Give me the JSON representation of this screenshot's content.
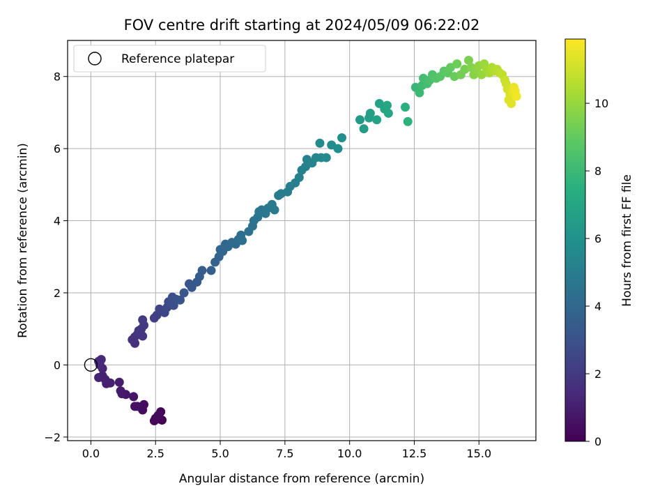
{
  "chart_data": {
    "type": "scatter",
    "title": "FOV centre drift starting at 2024/05/09 06:22:02",
    "xlabel": "Angular distance from reference (arcmin)",
    "ylabel": "Rotation from reference (arcmin)",
    "xlim": [
      -0.9,
      17.2
    ],
    "ylim": [
      -2.1,
      9.0
    ],
    "xticks": [
      0.0,
      2.5,
      5.0,
      7.5,
      10.0,
      12.5,
      15.0
    ],
    "xtick_labels": [
      "0.0",
      "2.5",
      "5.0",
      "7.5",
      "10.0",
      "12.5",
      "15.0"
    ],
    "yticks": [
      -2,
      0,
      2,
      4,
      6,
      8
    ],
    "ytick_labels": [
      "−2",
      "0",
      "2",
      "4",
      "6",
      "8"
    ],
    "grid": true,
    "colormap": "viridis",
    "colorbar": {
      "label": "Hours from first FF file",
      "range": [
        0,
        11.9
      ],
      "ticks": [
        0,
        2,
        4,
        6,
        8,
        10
      ],
      "tick_labels": [
        "0",
        "2",
        "4",
        "6",
        "8",
        "10"
      ]
    },
    "legend": {
      "entries": [
        {
          "label": "Reference platepar",
          "marker": "open-circle"
        }
      ],
      "position": "upper-left"
    },
    "reference_point": {
      "x": 0.0,
      "y": 0.0
    },
    "series": [
      {
        "marker": "filled-circle",
        "points": [
          [
            2.75,
            -1.53,
            0.05
          ],
          [
            2.65,
            -1.5,
            0.1
          ],
          [
            2.7,
            -1.3,
            0.15
          ],
          [
            2.5,
            -1.48,
            0.2
          ],
          [
            2.45,
            -1.55,
            0.25
          ],
          [
            2.6,
            -1.4,
            0.3
          ],
          [
            2.0,
            -1.25,
            0.4
          ],
          [
            2.05,
            -1.1,
            0.45
          ],
          [
            1.8,
            -1.15,
            0.5
          ],
          [
            1.7,
            -1.15,
            0.55
          ],
          [
            1.65,
            -0.88,
            0.65
          ],
          [
            1.35,
            -0.82,
            0.75
          ],
          [
            1.2,
            -0.8,
            0.8
          ],
          [
            1.15,
            -0.72,
            0.85
          ],
          [
            1.1,
            -0.48,
            0.9
          ],
          [
            0.75,
            -0.5,
            1.0
          ],
          [
            0.6,
            -0.52,
            1.05
          ],
          [
            0.55,
            -0.4,
            1.1
          ],
          [
            0.45,
            -0.3,
            1.15
          ],
          [
            0.3,
            -0.35,
            1.2
          ],
          [
            0.45,
            -0.1,
            1.25
          ],
          [
            0.35,
            0.0,
            1.3
          ],
          [
            0.4,
            0.15,
            1.35
          ],
          [
            0.3,
            0.1,
            1.4
          ],
          [
            1.7,
            0.6,
            1.6
          ],
          [
            1.6,
            0.7,
            1.65
          ],
          [
            1.7,
            0.78,
            1.7
          ],
          [
            1.8,
            0.85,
            1.75
          ],
          [
            1.85,
            0.95,
            1.8
          ],
          [
            2.0,
            0.8,
            1.85
          ],
          [
            1.95,
            1.0,
            1.9
          ],
          [
            2.05,
            1.1,
            1.95
          ],
          [
            2.0,
            1.25,
            2.0
          ],
          [
            2.45,
            1.3,
            2.2
          ],
          [
            2.55,
            1.38,
            2.3
          ],
          [
            2.65,
            1.55,
            2.4
          ],
          [
            2.85,
            1.45,
            2.5
          ],
          [
            2.95,
            1.6,
            2.6
          ],
          [
            3.0,
            1.75,
            2.7
          ],
          [
            3.15,
            1.88,
            2.8
          ],
          [
            3.2,
            1.65,
            2.85
          ],
          [
            3.3,
            1.82,
            2.9
          ],
          [
            3.45,
            1.8,
            3.0
          ],
          [
            3.6,
            2.0,
            3.1
          ],
          [
            3.8,
            2.25,
            3.2
          ],
          [
            3.9,
            2.15,
            3.25
          ],
          [
            4.1,
            2.3,
            3.35
          ],
          [
            4.2,
            2.45,
            3.45
          ],
          [
            4.3,
            2.62,
            3.5
          ],
          [
            4.65,
            2.62,
            3.6
          ],
          [
            4.8,
            2.85,
            3.7
          ],
          [
            4.95,
            3.0,
            3.8
          ],
          [
            5.1,
            3.15,
            3.9
          ],
          [
            5.0,
            3.2,
            3.95
          ],
          [
            5.2,
            3.35,
            4.0
          ],
          [
            5.3,
            3.28,
            4.05
          ],
          [
            5.45,
            3.4,
            4.1
          ],
          [
            5.6,
            3.35,
            4.15
          ],
          [
            5.7,
            3.48,
            4.2
          ],
          [
            5.8,
            3.6,
            4.25
          ],
          [
            5.85,
            3.45,
            4.3
          ],
          [
            6.1,
            3.7,
            4.4
          ],
          [
            6.25,
            3.85,
            4.45
          ],
          [
            6.3,
            4.0,
            4.5
          ],
          [
            6.45,
            4.1,
            4.55
          ],
          [
            6.5,
            4.25,
            4.6
          ],
          [
            6.6,
            4.3,
            4.65
          ],
          [
            6.75,
            4.2,
            4.7
          ],
          [
            6.85,
            4.35,
            4.75
          ],
          [
            7.0,
            4.45,
            4.8
          ],
          [
            7.1,
            4.3,
            4.85
          ],
          [
            7.25,
            4.7,
            4.9
          ],
          [
            7.35,
            4.75,
            4.95
          ],
          [
            7.6,
            4.8,
            5.0
          ],
          [
            7.7,
            4.95,
            5.05
          ],
          [
            7.9,
            5.05,
            5.1
          ],
          [
            8.05,
            5.2,
            5.15
          ],
          [
            8.15,
            5.4,
            5.2
          ],
          [
            8.3,
            5.5,
            5.25
          ],
          [
            8.35,
            5.7,
            5.3
          ],
          [
            8.55,
            5.6,
            5.35
          ],
          [
            8.7,
            5.75,
            5.45
          ],
          [
            8.9,
            5.75,
            5.55
          ],
          [
            8.85,
            6.15,
            5.6
          ],
          [
            9.1,
            5.75,
            5.65
          ],
          [
            9.3,
            6.1,
            5.7
          ],
          [
            9.55,
            6.0,
            5.8
          ],
          [
            9.7,
            6.3,
            5.9
          ],
          [
            10.4,
            6.8,
            6.4
          ],
          [
            10.55,
            6.55,
            6.5
          ],
          [
            10.75,
            6.85,
            6.6
          ],
          [
            10.8,
            6.98,
            6.65
          ],
          [
            11.05,
            6.8,
            6.75
          ],
          [
            11.15,
            7.25,
            6.8
          ],
          [
            11.35,
            7.1,
            6.9
          ],
          [
            11.5,
            6.98,
            7.0
          ],
          [
            11.45,
            7.2,
            7.05
          ],
          [
            12.15,
            7.15,
            7.5
          ],
          [
            12.25,
            6.75,
            7.6
          ],
          [
            12.55,
            7.7,
            7.9
          ],
          [
            12.7,
            7.55,
            8.0
          ],
          [
            12.8,
            7.75,
            8.1
          ],
          [
            12.85,
            7.95,
            8.2
          ],
          [
            13.0,
            7.8,
            8.3
          ],
          [
            13.1,
            7.9,
            8.4
          ],
          [
            13.2,
            8.05,
            8.5
          ],
          [
            13.35,
            7.95,
            8.6
          ],
          [
            13.5,
            8.0,
            8.7
          ],
          [
            13.65,
            8.15,
            8.8
          ],
          [
            13.8,
            8.1,
            8.9
          ],
          [
            13.9,
            8.25,
            9.0
          ],
          [
            14.05,
            8.0,
            9.1
          ],
          [
            14.15,
            8.35,
            9.2
          ],
          [
            14.3,
            8.05,
            9.3
          ],
          [
            14.45,
            8.2,
            9.4
          ],
          [
            14.6,
            8.45,
            9.5
          ],
          [
            14.7,
            8.25,
            9.6
          ],
          [
            14.8,
            8.05,
            9.7
          ],
          [
            14.9,
            8.2,
            9.8
          ],
          [
            15.0,
            8.3,
            9.9
          ],
          [
            15.1,
            8.05,
            10.0
          ],
          [
            15.2,
            8.35,
            10.1
          ],
          [
            15.3,
            8.2,
            10.2
          ],
          [
            15.4,
            8.1,
            10.3
          ],
          [
            15.5,
            8.25,
            10.4
          ],
          [
            15.6,
            8.15,
            10.5
          ],
          [
            15.7,
            8.2,
            10.6
          ],
          [
            15.8,
            8.1,
            10.7
          ],
          [
            15.9,
            8.05,
            10.8
          ],
          [
            16.0,
            7.9,
            10.9
          ],
          [
            16.05,
            7.8,
            11.0
          ],
          [
            16.1,
            7.65,
            11.1
          ],
          [
            16.2,
            7.5,
            11.2
          ],
          [
            16.15,
            7.35,
            11.3
          ],
          [
            16.25,
            7.25,
            11.4
          ],
          [
            16.3,
            7.55,
            11.5
          ],
          [
            16.35,
            7.7,
            11.55
          ],
          [
            16.4,
            7.6,
            11.6
          ],
          [
            16.45,
            7.45,
            11.7
          ]
        ]
      }
    ]
  }
}
